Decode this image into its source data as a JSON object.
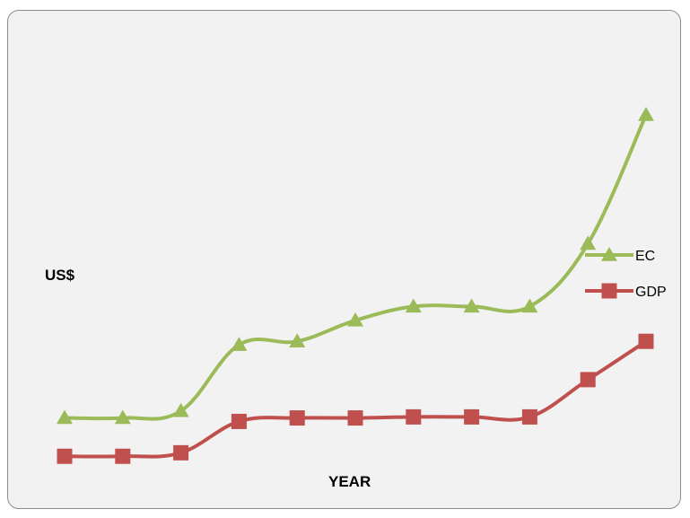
{
  "chart_data": {
    "type": "line",
    "xlabel": "YEAR",
    "ylabel": "US$",
    "smooth": true,
    "grid": false,
    "legend_position": "right",
    "x": [
      1,
      2,
      3,
      4,
      5,
      6,
      7,
      8,
      9,
      10,
      11
    ],
    "ylim": [
      0,
      100
    ],
    "series": [
      {
        "name": "EC",
        "color": "#9bbb59",
        "marker": "triangle",
        "values": [
          13,
          13,
          15,
          34,
          35,
          41,
          45,
          45,
          45,
          63,
          100
        ]
      },
      {
        "name": "GDP",
        "color": "#c0504d",
        "marker": "square",
        "values": [
          2,
          2,
          3,
          12,
          13,
          13,
          13.3,
          13.3,
          13.3,
          24,
          35
        ]
      }
    ]
  }
}
